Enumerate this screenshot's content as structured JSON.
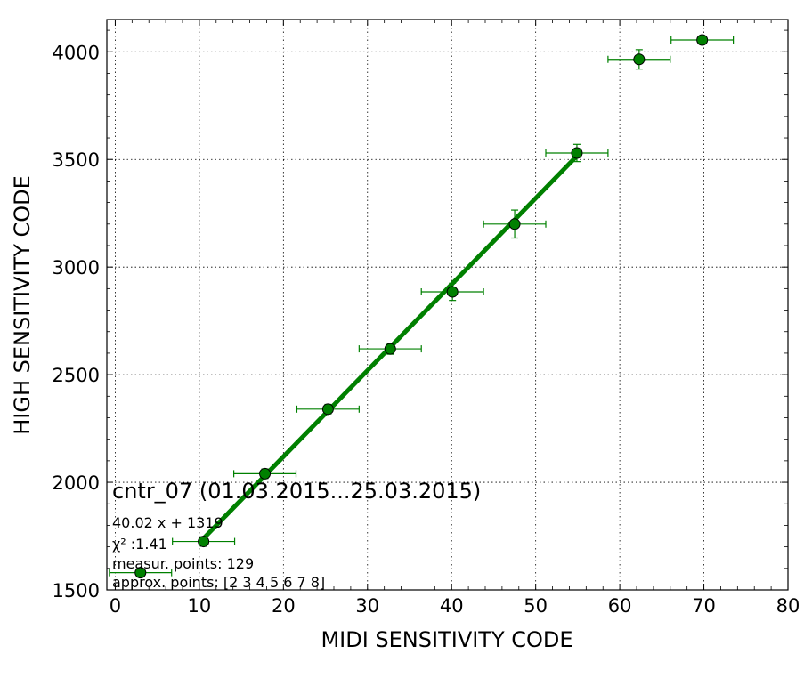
{
  "chart_data": {
    "type": "scatter",
    "title": "cntr_07 (01.03.2015...25.03.2015)",
    "xlabel": "MIDI SENSITIVITY CODE",
    "ylabel": "HIGH SENSITIVITY CODE",
    "xlim": [
      -1,
      80
    ],
    "ylim": [
      1500,
      4150
    ],
    "x_ticks": [
      0,
      10,
      20,
      30,
      40,
      50,
      60,
      70,
      80
    ],
    "y_ticks": [
      1500,
      2000,
      2500,
      3000,
      3500,
      4000
    ],
    "grid": true,
    "grid_style": "dotted",
    "colors": {
      "series": "#008000",
      "marker_fill": "#008000",
      "marker_edge": "#000000"
    },
    "points": [
      {
        "x": 3.0,
        "y": 1580,
        "xerr": 3.7,
        "yerr": 0
      },
      {
        "x": 10.5,
        "y": 1725,
        "xerr": 3.7,
        "yerr": 22
      },
      {
        "x": 17.8,
        "y": 2040,
        "xerr": 3.7,
        "yerr": 22
      },
      {
        "x": 25.3,
        "y": 2340,
        "xerr": 3.7,
        "yerr": 22
      },
      {
        "x": 32.7,
        "y": 2620,
        "xerr": 3.7,
        "yerr": 25
      },
      {
        "x": 40.1,
        "y": 2885,
        "xerr": 3.7,
        "yerr": 40
      },
      {
        "x": 47.5,
        "y": 3200,
        "xerr": 3.7,
        "yerr": 65
      },
      {
        "x": 54.9,
        "y": 3530,
        "xerr": 3.7,
        "yerr": 40
      },
      {
        "x": 62.3,
        "y": 3965,
        "xerr": 3.7,
        "yerr": 45
      },
      {
        "x": 69.8,
        "y": 4055,
        "xerr": 3.7,
        "yerr": 0
      }
    ],
    "fit": {
      "slope": 40.02,
      "intercept": 1319,
      "x_range": [
        10.5,
        54.9
      ]
    },
    "annotations": {
      "equation": "40.02 x + 1319",
      "chi2_label": "χ² :1.41",
      "measur_points": "measur. points: 129",
      "approx_points": "approx. points: [2 3 4 5 6 7 8]"
    }
  }
}
